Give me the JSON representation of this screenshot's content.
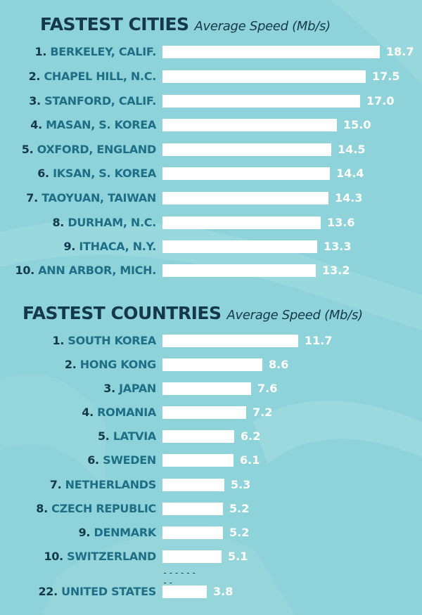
{
  "colors": {
    "background": "#8dd3d9",
    "bar": "#ffffff",
    "rank_text": "#14394a",
    "name_text": "#1d6e86",
    "value_text": "#ffffff"
  },
  "separator": "--------",
  "chart_data": [
    {
      "type": "bar",
      "orientation": "horizontal",
      "title": "FASTEST CITIES",
      "subtitle": "Average Speed (Mb/s)",
      "xlim": [
        0,
        18.7
      ],
      "grid": false,
      "items": [
        {
          "rank": "1.",
          "name": "BERKELEY, CALIF.",
          "value": 18.7,
          "value_label": "18.7"
        },
        {
          "rank": "2.",
          "name": "CHAPEL HILL, N.C.",
          "value": 17.5,
          "value_label": "17.5"
        },
        {
          "rank": "3.",
          "name": "STANFORD, CALIF.",
          "value": 17.0,
          "value_label": "17.0"
        },
        {
          "rank": "4.",
          "name": "MASAN, S. KOREA",
          "value": 15.0,
          "value_label": "15.0"
        },
        {
          "rank": "5.",
          "name": "OXFORD, ENGLAND",
          "value": 14.5,
          "value_label": "14.5"
        },
        {
          "rank": "6.",
          "name": "IKSAN, S. KOREA",
          "value": 14.4,
          "value_label": "14.4"
        },
        {
          "rank": "7.",
          "name": "TAOYUAN, TAIWAN",
          "value": 14.3,
          "value_label": "14.3"
        },
        {
          "rank": "8.",
          "name": "DURHAM, N.C.",
          "value": 13.6,
          "value_label": "13.6"
        },
        {
          "rank": "9.",
          "name": "ITHACA, N.Y.",
          "value": 13.3,
          "value_label": "13.3"
        },
        {
          "rank": "10.",
          "name": "ANN ARBOR, MICH.",
          "value": 13.2,
          "value_label": "13.2"
        }
      ]
    },
    {
      "type": "bar",
      "orientation": "horizontal",
      "title": "FASTEST COUNTRIES",
      "subtitle": "Average Speed (Mb/s)",
      "xlim": [
        0,
        18.7
      ],
      "grid": false,
      "items": [
        {
          "rank": "1.",
          "name": "SOUTH KOREA",
          "value": 11.7,
          "value_label": "11.7"
        },
        {
          "rank": "2.",
          "name": "HONG KONG",
          "value": 8.6,
          "value_label": "8.6"
        },
        {
          "rank": "3.",
          "name": "JAPAN",
          "value": 7.6,
          "value_label": "7.6"
        },
        {
          "rank": "4.",
          "name": "ROMANIA",
          "value": 7.2,
          "value_label": "7.2"
        },
        {
          "rank": "5.",
          "name": "LATVIA",
          "value": 6.2,
          "value_label": "6.2"
        },
        {
          "rank": "6.",
          "name": "SWEDEN",
          "value": 6.1,
          "value_label": "6.1"
        },
        {
          "rank": "7.",
          "name": "NETHERLANDS",
          "value": 5.3,
          "value_label": "5.3"
        },
        {
          "rank": "8.",
          "name": "CZECH REPUBLIC",
          "value": 5.2,
          "value_label": "5.2"
        },
        {
          "rank": "9.",
          "name": "DENMARK",
          "value": 5.2,
          "value_label": "5.2"
        },
        {
          "rank": "10.",
          "name": "SWITZERLAND",
          "value": 5.1,
          "value_label": "5.1"
        },
        {
          "rank": "22.",
          "name": "UNITED STATES",
          "value": 3.8,
          "value_label": "3.8"
        }
      ]
    }
  ]
}
